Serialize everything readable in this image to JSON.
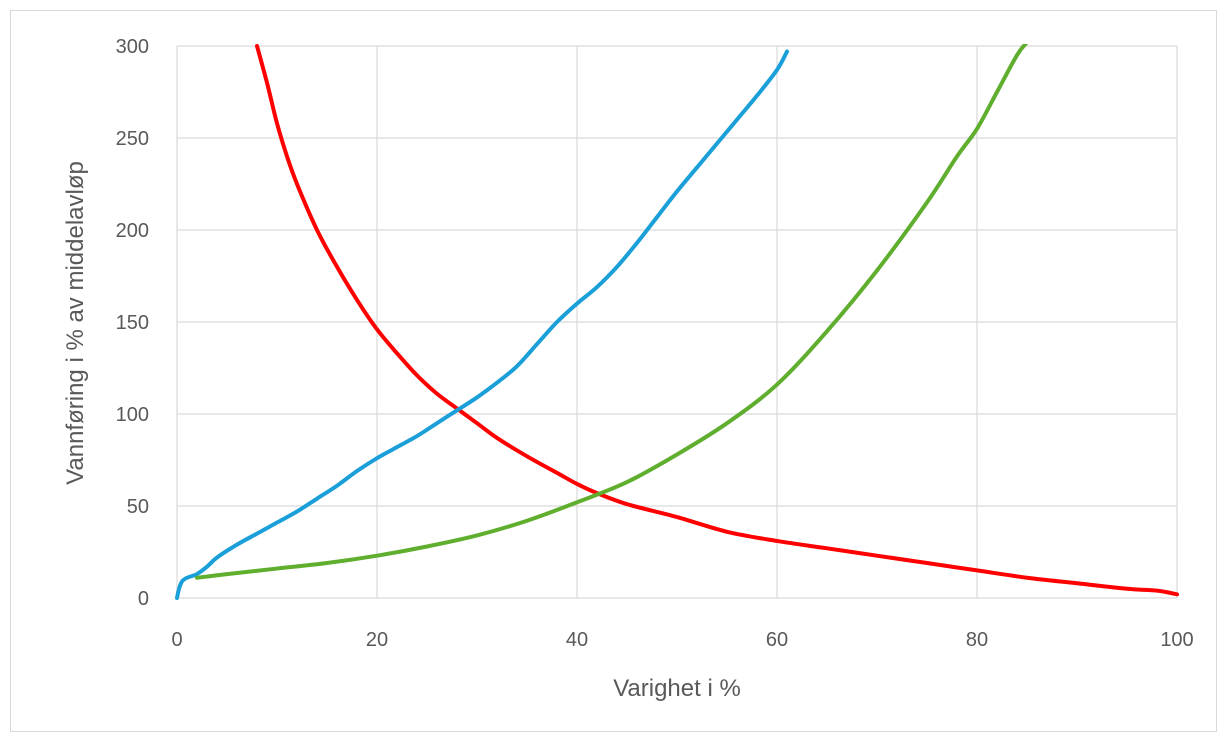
{
  "chart_data": {
    "type": "line",
    "title": "",
    "xlabel": "Varighet i %",
    "ylabel": "Vannføring i % av middelavløp",
    "xlim": [
      0,
      100
    ],
    "ylim": [
      0,
      300
    ],
    "xticks": [
      0,
      20,
      40,
      60,
      80,
      100
    ],
    "yticks": [
      0,
      50,
      100,
      150,
      200,
      250,
      300
    ],
    "grid": true,
    "legend": "none",
    "series": [
      {
        "color": "#ff0000",
        "x": [
          8,
          9,
          10,
          11,
          12,
          14,
          16,
          18,
          20,
          22,
          24,
          26,
          28,
          30,
          32,
          35,
          38,
          40,
          42,
          45,
          50,
          55,
          60,
          65,
          70,
          75,
          80,
          85,
          90,
          95,
          98,
          100
        ],
        "y": [
          300,
          280,
          258,
          240,
          225,
          200,
          180,
          162,
          146,
          133,
          121,
          111,
          103,
          95,
          87,
          77,
          68,
          62,
          57,
          51,
          44,
          36,
          31,
          27,
          23,
          19,
          15,
          11,
          8,
          5,
          4,
          2
        ]
      },
      {
        "color": "#1a9fd9",
        "x": [
          0,
          0.2,
          0.5,
          1,
          2,
          3,
          4,
          6,
          8,
          10,
          12,
          14,
          16,
          18,
          20,
          22,
          24,
          26,
          28,
          30,
          32,
          34,
          36,
          38,
          40,
          42,
          44,
          46,
          48,
          50,
          52,
          54,
          56,
          58,
          60,
          61
        ],
        "y": [
          0,
          5,
          9,
          11,
          13,
          17,
          22,
          29,
          35,
          41,
          47,
          54,
          61,
          69,
          76,
          82,
          88,
          95,
          102,
          109,
          117,
          126,
          138,
          150,
          160,
          169,
          180,
          193,
          207,
          221,
          234,
          247,
          260,
          273,
          287,
          297
        ]
      },
      {
        "color": "#5fae2e",
        "x": [
          2,
          5,
          10,
          15,
          20,
          25,
          30,
          35,
          40,
          45,
          50,
          55,
          60,
          65,
          70,
          75,
          78,
          80,
          82,
          84,
          85
        ],
        "y": [
          11,
          13,
          16,
          19,
          23,
          28,
          34,
          42,
          52,
          63,
          78,
          95,
          116,
          145,
          178,
          215,
          240,
          255,
          275,
          295,
          302
        ]
      }
    ]
  }
}
